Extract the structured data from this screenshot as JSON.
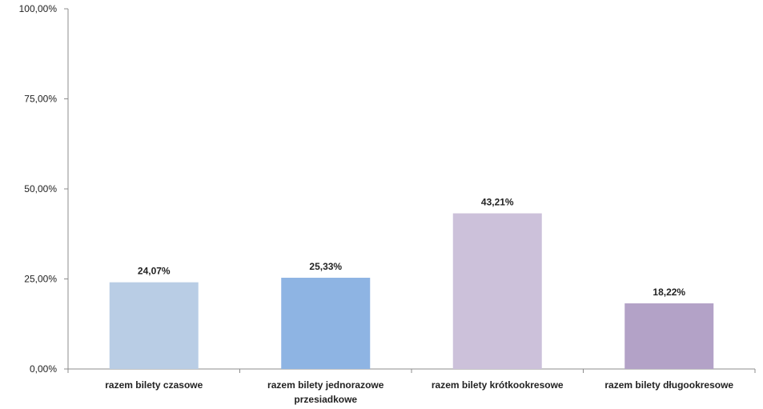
{
  "chart_data": {
    "type": "bar",
    "categories": [
      [
        "razem bilety czasowe"
      ],
      [
        "razem bilety jednorazowe",
        "przesiadkowe"
      ],
      [
        "razem bilety krótkookresowe"
      ],
      [
        "razem bilety długookresowe"
      ]
    ],
    "values": [
      24.07,
      25.33,
      43.21,
      18.22
    ],
    "data_labels": [
      "24,07%",
      "25,33%",
      "43,21%",
      "18,22%"
    ],
    "colors": [
      "#b9cde5",
      "#8eb4e3",
      "#ccc1da",
      "#b3a2c7"
    ],
    "ylim": [
      0,
      100
    ],
    "y_ticks": [
      0,
      25,
      50,
      75,
      100
    ],
    "y_tick_labels": [
      "0,00%",
      "25,00%",
      "50,00%",
      "75,00%",
      "100,00%"
    ],
    "grid": false,
    "legend": "none",
    "title": "",
    "xlabel": "",
    "ylabel": ""
  }
}
